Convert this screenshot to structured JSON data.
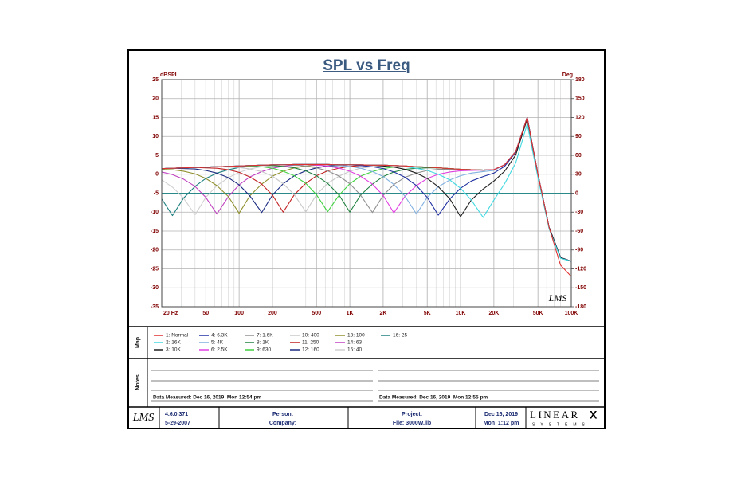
{
  "chart_data": {
    "type": "line",
    "title": "SPL vs Freq",
    "y_label": "dBSPL",
    "y2_label": "Deg",
    "log_x": true,
    "grid": true,
    "x": [
      20,
      25,
      31.5,
      40,
      50,
      63,
      80,
      100,
      125,
      160,
      200,
      250,
      315,
      400,
      500,
      630,
      800,
      1000,
      1250,
      1600,
      2000,
      2500,
      3150,
      4000,
      5000,
      6300,
      8000,
      10000,
      12500,
      16000,
      20000,
      25000,
      31500,
      40000,
      50000,
      63000,
      80000,
      100000
    ],
    "xlim": [
      20,
      100000
    ],
    "xticks": [
      {
        "value": 20,
        "label": "20 Hz"
      },
      50,
      100,
      200,
      500,
      {
        "value": 1000,
        "label": "1K"
      },
      {
        "value": 2000,
        "label": "2K"
      },
      {
        "value": 5000,
        "label": "5K"
      },
      {
        "value": 10000,
        "label": "10K"
      },
      {
        "value": 20000,
        "label": "20K"
      },
      {
        "value": 50000,
        "label": "50K"
      },
      {
        "value": 100000,
        "label": "100K"
      }
    ],
    "xminor": [
      30,
      40,
      60,
      70,
      80,
      90,
      300,
      400,
      600,
      700,
      800,
      900,
      3000,
      4000,
      6000,
      7000,
      8000,
      9000,
      30000,
      40000,
      60000,
      70000,
      80000,
      90000
    ],
    "ylim": [
      -35,
      25
    ],
    "yticks": [
      -35,
      -30,
      -25,
      -20,
      -15,
      -10,
      -5,
      0,
      5,
      10,
      15,
      20,
      25
    ],
    "y2lim": [
      -180,
      180
    ],
    "y2ticks": [
      -180,
      -150,
      -120,
      -90,
      -60,
      -30,
      0,
      30,
      60,
      90,
      120,
      150,
      180
    ],
    "y2_reference": 0,
    "y2_reference_color": "#2a8a8a",
    "watermark": "LMS",
    "series": [
      {
        "name": "1: Normal",
        "color": "#e03030",
        "values": [
          1.5,
          1.6,
          1.7,
          1.8,
          1.9,
          2.0,
          2.1,
          2.2,
          2.3,
          2.4,
          2.5,
          2.5,
          2.6,
          2.6,
          2.6,
          2.6,
          2.5,
          2.5,
          2.5,
          2.4,
          2.4,
          2.3,
          2.2,
          2.0,
          1.9,
          1.7,
          1.5,
          1.3,
          1.2,
          1.1,
          1.2,
          2.5,
          6,
          15,
          0,
          -14,
          -24,
          -27
        ]
      },
      {
        "name": "2: 16K",
        "color": "#40d8e0",
        "values": [
          1.5,
          1.6,
          1.7,
          1.8,
          1.9,
          2.0,
          2.1,
          2.2,
          2.3,
          2.4,
          2.5,
          2.5,
          2.6,
          2.6,
          2.6,
          2.6,
          2.5,
          2.5,
          2.5,
          2.4,
          2.4,
          2.3,
          2.0,
          1.6,
          1.0,
          0.0,
          -1.5,
          -3.7,
          -6.8,
          -11.4,
          -6.8,
          -2.5,
          3.0,
          13.3,
          -0.9,
          -14.4,
          -22.2,
          -23
        ]
      },
      {
        "name": "3: 10K",
        "color": "#202020",
        "values": [
          1.5,
          1.6,
          1.7,
          1.8,
          1.9,
          2.0,
          2.1,
          2.2,
          2.3,
          2.4,
          2.5,
          2.5,
          2.6,
          2.6,
          2.6,
          2.6,
          2.5,
          2.5,
          2.5,
          2.4,
          2.2,
          1.9,
          1.3,
          0.3,
          -1.1,
          -3.3,
          -6.5,
          -11.2,
          -6.8,
          -3.9,
          -1.8,
          0.8,
          5.1,
          14.6,
          -0.2,
          -14,
          -22,
          -23
        ]
      },
      {
        "name": "4: 6.3K",
        "color": "#2030a0",
        "values": [
          1.5,
          1.6,
          1.7,
          1.8,
          1.9,
          2.0,
          2.1,
          2.2,
          2.3,
          2.4,
          2.5,
          2.5,
          2.6,
          2.6,
          2.6,
          2.6,
          2.5,
          2.5,
          2.3,
          2.0,
          1.5,
          0.6,
          -0.8,
          -3.0,
          -6.1,
          -10.8,
          -6.5,
          -3.7,
          -1.8,
          -0.6,
          0.3,
          2.1,
          5.8,
          15,
          0,
          -14,
          -22,
          -23
        ]
      },
      {
        "name": "5: 4K",
        "color": "#80b0e0",
        "values": [
          1.5,
          1.6,
          1.7,
          1.8,
          1.9,
          2.0,
          2.1,
          2.2,
          2.3,
          2.4,
          2.5,
          2.5,
          2.6,
          2.6,
          2.6,
          2.6,
          2.3,
          2.1,
          1.6,
          0.7,
          -0.6,
          -2.7,
          -5.8,
          -10.5,
          -6.1,
          -3.3,
          -1.5,
          -0.4,
          0.3,
          0.7,
          1.0,
          2.5,
          6,
          15,
          0,
          -14,
          -22,
          -23
        ]
      },
      {
        "name": "6: 2.5K",
        "color": "#e040e0",
        "values": [
          1.5,
          1.6,
          1.7,
          1.8,
          1.9,
          2.0,
          2.1,
          2.2,
          2.3,
          2.4,
          2.5,
          2.5,
          2.6,
          2.6,
          2.4,
          2.2,
          1.6,
          0.8,
          -0.5,
          -2.6,
          -5.6,
          -10.2,
          -5.8,
          -3.0,
          -1.1,
          0.0,
          0.6,
          0.9,
          1.0,
          1.1,
          1.2,
          2.5,
          6,
          15,
          0,
          -14,
          -22,
          -23
        ]
      },
      {
        "name": "7: 1.6K",
        "color": "#909090",
        "values": [
          1.5,
          1.6,
          1.7,
          1.8,
          1.9,
          2.0,
          2.1,
          2.2,
          2.3,
          2.4,
          2.5,
          2.5,
          2.4,
          2.2,
          1.7,
          0.9,
          -0.5,
          -2.5,
          -5.5,
          -10.1,
          -5.6,
          -2.7,
          -0.8,
          0.3,
          1.0,
          1.3,
          1.3,
          1.3,
          1.2,
          1.1,
          1.2,
          2.5,
          6,
          15,
          0,
          -14,
          -22,
          -23
        ]
      },
      {
        "name": "8: 1K",
        "color": "#208040",
        "values": [
          1.5,
          1.6,
          1.7,
          1.8,
          1.9,
          2.0,
          2.1,
          2.2,
          2.3,
          2.4,
          2.3,
          2.1,
          1.7,
          0.9,
          -0.4,
          -2.4,
          -5.5,
          -10.0,
          -5.5,
          -2.6,
          -0.6,
          0.6,
          1.3,
          1.6,
          1.7,
          1.7,
          1.5,
          1.3,
          1.2,
          1.1,
          1.2,
          2.5,
          6,
          15,
          0,
          -14,
          -22,
          -23
        ]
      },
      {
        "name": "9: 630",
        "color": "#40d040",
        "values": [
          1.5,
          1.6,
          1.7,
          1.8,
          1.9,
          2.0,
          2.1,
          2.2,
          2.1,
          2.0,
          1.6,
          0.8,
          -0.4,
          -2.4,
          -5.4,
          -9.9,
          -5.5,
          -2.5,
          -0.5,
          0.7,
          1.5,
          1.9,
          2.0,
          2.0,
          1.9,
          1.7,
          1.5,
          1.3,
          1.2,
          1.1,
          1.2,
          2.5,
          6,
          15,
          0,
          -14,
          -22,
          -23
        ]
      },
      {
        "name": "10: 400",
        "color": "#c8c8c8",
        "values": [
          1.5,
          1.6,
          1.7,
          1.8,
          1.9,
          2.0,
          1.9,
          1.8,
          1.4,
          0.7,
          -0.5,
          -2.5,
          -5.4,
          -9.9,
          -5.4,
          -2.4,
          -0.5,
          0.8,
          1.6,
          2.0,
          2.2,
          2.3,
          2.2,
          2.0,
          1.9,
          1.7,
          1.5,
          1.3,
          1.2,
          1.1,
          1.2,
          2.5,
          6,
          15,
          0,
          -14,
          -22,
          -23
        ]
      },
      {
        "name": "11: 250",
        "color": "#c02020",
        "values": [
          1.5,
          1.6,
          1.7,
          1.8,
          1.7,
          1.6,
          1.2,
          0.5,
          -0.7,
          -2.6,
          -5.5,
          -10.0,
          -5.4,
          -2.4,
          -0.4,
          0.9,
          1.6,
          2.1,
          2.3,
          2.4,
          2.4,
          2.3,
          2.2,
          2.0,
          1.9,
          1.7,
          1.5,
          1.3,
          1.2,
          1.1,
          1.2,
          2.5,
          6,
          15,
          0,
          -14,
          -22,
          -23
        ]
      },
      {
        "name": "12: 160",
        "color": "#1a2a80",
        "values": [
          1.5,
          1.6,
          1.5,
          1.4,
          1.0,
          0.3,
          -0.9,
          -2.8,
          -5.7,
          -10.1,
          -5.5,
          -2.5,
          -0.4,
          0.9,
          1.7,
          2.2,
          2.3,
          2.5,
          2.5,
          2.4,
          2.4,
          2.3,
          2.2,
          2.0,
          1.9,
          1.7,
          1.5,
          1.3,
          1.2,
          1.1,
          1.2,
          2.5,
          6,
          15,
          0,
          -14,
          -22,
          -23
        ]
      },
      {
        "name": "13: 100",
        "color": "#909030",
        "values": [
          1.3,
          1.2,
          0.8,
          0.1,
          -1.1,
          -3.0,
          -5.9,
          -10.3,
          -5.7,
          -2.6,
          -0.5,
          0.8,
          1.7,
          2.2,
          2.4,
          2.6,
          2.5,
          2.5,
          2.5,
          2.4,
          2.4,
          2.3,
          2.2,
          2.0,
          1.9,
          1.7,
          1.5,
          1.3,
          1.2,
          1.1,
          1.2,
          2.5,
          6,
          15,
          0,
          -14,
          -22,
          -23
        ]
      },
      {
        "name": "14: 63",
        "color": "#c040c0",
        "values": [
          0.6,
          -0.1,
          -1.3,
          -3.2,
          -6.1,
          -10.5,
          -5.9,
          -2.8,
          -0.7,
          0.7,
          1.6,
          2.1,
          2.4,
          2.6,
          2.6,
          2.6,
          2.5,
          2.5,
          2.5,
          2.4,
          2.4,
          2.3,
          2.2,
          2.0,
          1.9,
          1.7,
          1.5,
          1.3,
          1.2,
          1.1,
          1.2,
          2.5,
          6,
          15,
          0,
          -14,
          -22,
          -23
        ]
      },
      {
        "name": "15: 40",
        "color": "#d0d0d0",
        "values": [
          -1.5,
          -3.4,
          -6.3,
          -10.7,
          -6.1,
          -3.0,
          -0.9,
          0.5,
          1.4,
          2.0,
          2.3,
          2.5,
          2.6,
          2.6,
          2.6,
          2.6,
          2.5,
          2.5,
          2.5,
          2.4,
          2.4,
          2.3,
          2.2,
          2.0,
          1.9,
          1.7,
          1.5,
          1.3,
          1.2,
          1.1,
          1.2,
          2.5,
          6,
          15,
          0,
          -14,
          -22,
          -23
        ]
      },
      {
        "name": "16: 25",
        "color": "#208080",
        "values": [
          -6.5,
          -10.9,
          -6.3,
          -3.2,
          -1.1,
          0.3,
          1.2,
          1.8,
          2.1,
          2.4,
          2.5,
          2.5,
          2.6,
          2.6,
          2.6,
          2.6,
          2.5,
          2.5,
          2.5,
          2.4,
          2.4,
          2.3,
          2.2,
          2.0,
          1.9,
          1.7,
          1.5,
          1.3,
          1.2,
          1.1,
          1.2,
          2.5,
          6,
          15,
          0,
          -14,
          -22,
          -23
        ]
      }
    ]
  },
  "map_label": "Map",
  "notes": {
    "label": "Notes",
    "left": "Data Measured: Dec 16, 2019  Mon 12:54 pm",
    "right": "Data Measured: Dec 16, 2019  Mon 12:55 pm"
  },
  "footer": {
    "logo": "LMS",
    "version": "4.6.0.371",
    "build_date": "5-29-2007",
    "person": "Person:",
    "company": "Company:",
    "project": "Project:",
    "file": "File: 3000W.lib",
    "date": "Dec 16, 2019",
    "time": "Mon  1:12 pm",
    "brand": "LINEAR",
    "brand_mark": "X",
    "brand_sub": "SYSTEMS"
  }
}
